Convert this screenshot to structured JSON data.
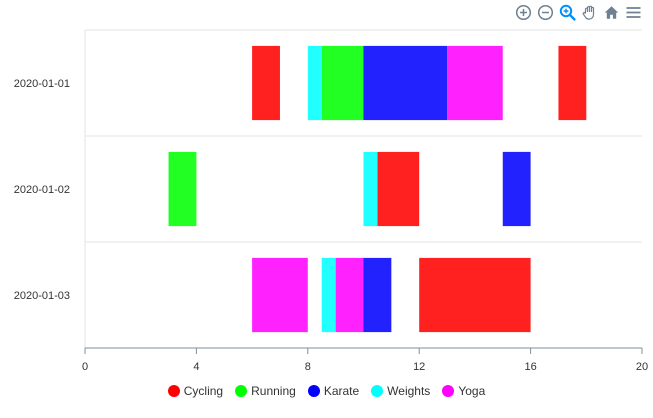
{
  "toolbar": {
    "icons": [
      "zoom-in-icon",
      "zoom-out-icon",
      "selection-zoom-icon",
      "pan-icon",
      "reset-zoom-icon",
      "menu-icon"
    ],
    "active_color": "#008ffb",
    "color": "#6e8192"
  },
  "chart_data": {
    "type": "bar",
    "orientation": "horizontal-range",
    "title": "",
    "xlabel": "",
    "ylabel": "",
    "xlim": [
      0,
      20
    ],
    "xticks": [
      0,
      4,
      8,
      12,
      16,
      20
    ],
    "categories": [
      "2020-01-01",
      "2020-01-02",
      "2020-01-03"
    ],
    "grid": true,
    "legend_position": "bottom",
    "series": [
      {
        "name": "Cycling",
        "color": "#ff2020",
        "legend_color": "#ff0000",
        "ranges": [
          {
            "category": "2020-01-01",
            "start": 6,
            "end": 7
          },
          {
            "category": "2020-01-01",
            "start": 17,
            "end": 18
          },
          {
            "category": "2020-01-02",
            "start": 10.5,
            "end": 12
          },
          {
            "category": "2020-01-03",
            "start": 12,
            "end": 16
          }
        ]
      },
      {
        "name": "Running",
        "color": "#22ff22",
        "legend_color": "#00ff00",
        "ranges": [
          {
            "category": "2020-01-01",
            "start": 8.5,
            "end": 10
          },
          {
            "category": "2020-01-02",
            "start": 3,
            "end": 4
          }
        ]
      },
      {
        "name": "Karate",
        "color": "#2222ff",
        "legend_color": "#0000ff",
        "ranges": [
          {
            "category": "2020-01-01",
            "start": 10,
            "end": 13
          },
          {
            "category": "2020-01-02",
            "start": 15,
            "end": 16
          },
          {
            "category": "2020-01-03",
            "start": 10,
            "end": 11
          }
        ]
      },
      {
        "name": "Weights",
        "color": "#22ffff",
        "legend_color": "#00ffff",
        "ranges": [
          {
            "category": "2020-01-01",
            "start": 8,
            "end": 8.5
          },
          {
            "category": "2020-01-02",
            "start": 10,
            "end": 10.5
          },
          {
            "category": "2020-01-03",
            "start": 8.5,
            "end": 9
          }
        ]
      },
      {
        "name": "Yoga",
        "color": "#ff22ff",
        "legend_color": "#ff00ff",
        "ranges": [
          {
            "category": "2020-01-01",
            "start": 13,
            "end": 15
          },
          {
            "category": "2020-01-03",
            "start": 6,
            "end": 8
          },
          {
            "category": "2020-01-03",
            "start": 9,
            "end": 10
          }
        ]
      }
    ]
  }
}
